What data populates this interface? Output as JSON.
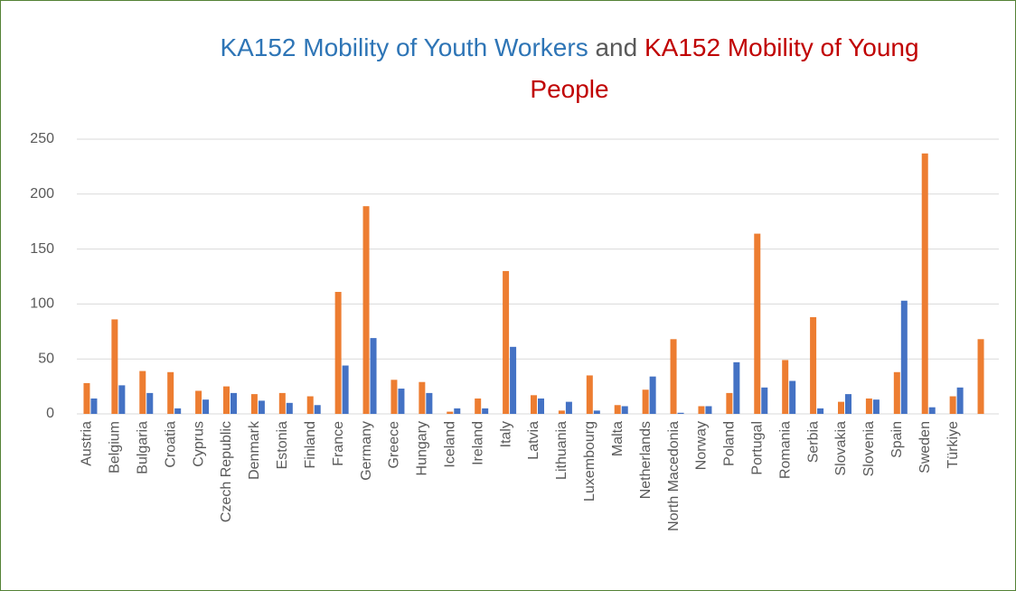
{
  "chart_data": {
    "type": "bar",
    "title": [
      {
        "text": "KA152 Mobility of Youth Workers",
        "color": "#2e75b6"
      },
      {
        "text": "and",
        "color": "#595959"
      },
      {
        "text": "KA152 Mobility of Young People",
        "color": "#c00000"
      }
    ],
    "categories": [
      "Austria",
      "Belgium",
      "Bulgaria",
      "Croatia",
      "Cyprus",
      "Czech Republic",
      "Denmark",
      "Estonia",
      "Finland",
      "France",
      "Germany",
      "Greece",
      "Hungary",
      "Iceland",
      "Ireland",
      "Italy",
      "Latvia",
      "Lithuania",
      "Luxembourg",
      "Malta",
      "Netherlands",
      "North Macedonia",
      "Norway",
      "Poland",
      "Portugal",
      "Romania",
      "Serbia",
      "Slovakia",
      "Slovenia",
      "Spain",
      "Sweden",
      "Türkiye",
      null
    ],
    "series": [
      {
        "color": "#ed7d31",
        "values": [
          28,
          86,
          39,
          38,
          21,
          25,
          18,
          19,
          16,
          111,
          189,
          31,
          29,
          2,
          14,
          130,
          17,
          3,
          35,
          8,
          22,
          68,
          7,
          19,
          164,
          49,
          88,
          11,
          14,
          38,
          237,
          16,
          68
        ]
      },
      {
        "color": "#4472c4",
        "values": [
          14,
          26,
          19,
          5,
          13,
          19,
          12,
          10,
          8,
          44,
          69,
          23,
          19,
          5,
          5,
          61,
          14,
          11,
          3,
          7,
          34,
          1,
          7,
          47,
          24,
          30,
          5,
          18,
          13,
          103,
          6,
          24,
          null
        ]
      }
    ],
    "ylim": [
      0,
      250
    ],
    "yticks": [
      0,
      50,
      100,
      150,
      200,
      250
    ],
    "grid": true
  }
}
